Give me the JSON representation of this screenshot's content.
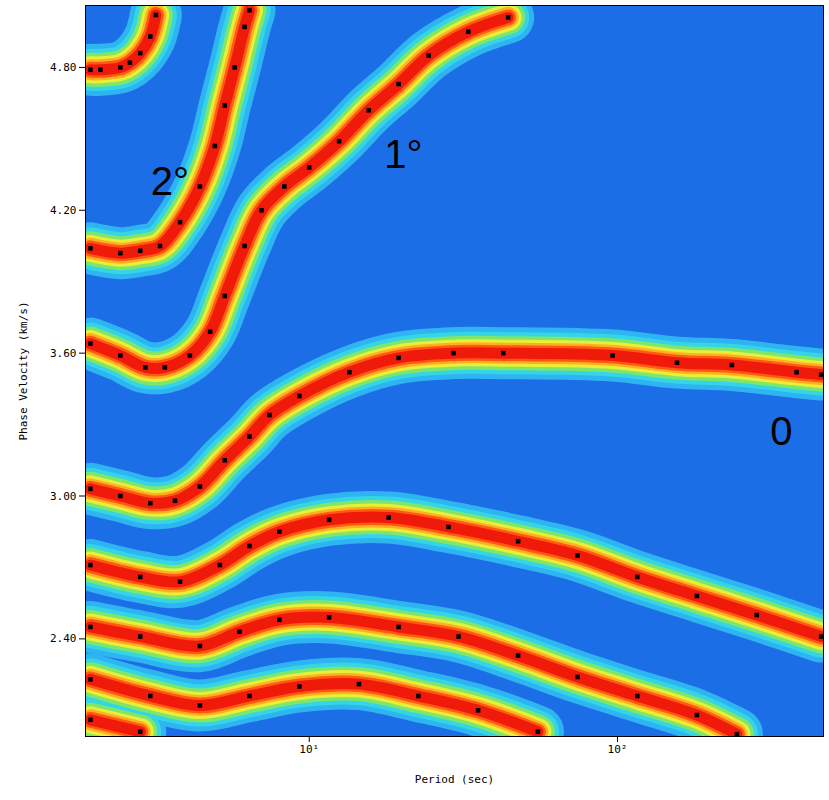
{
  "chart_data": {
    "type": "scatter",
    "x_label": "Period (sec)",
    "y_label": "Phase Velocity (km/s)",
    "log": "x",
    "xlim": [
      1.88,
      466
    ],
    "ylim": [
      1.99,
      5.06
    ],
    "xticks": [
      {
        "value": 10,
        "label": "10¹"
      },
      {
        "value": 100,
        "label": "10²"
      }
    ],
    "yticks": [
      {
        "value": 2.4,
        "label": "2.40"
      },
      {
        "value": 3.0,
        "label": "3.00"
      },
      {
        "value": 3.6,
        "label": "3.60"
      },
      {
        "value": 4.2,
        "label": "4.20"
      },
      {
        "value": 4.8,
        "label": "4.80"
      }
    ],
    "series": [
      {
        "color": "#000000",
        "marker": "square",
        "x": [
          1.95,
          2.1,
          2.44,
          2.62,
          2.83,
          3.05,
          3.18
        ],
        "values": [
          4.79,
          4.79,
          4.8,
          4.82,
          4.86,
          4.93,
          5.02
        ]
      },
      {
        "color": "#000000",
        "marker": "square",
        "x": [
          1.95,
          2.44,
          2.83,
          3.28,
          3.81,
          4.42,
          4.94,
          5.32,
          5.73,
          6.17,
          6.4
        ],
        "values": [
          4.04,
          4.02,
          4.03,
          4.05,
          4.15,
          4.3,
          4.47,
          4.64,
          4.8,
          4.97,
          5.04
        ]
      },
      {
        "color": "#000000",
        "marker": "square",
        "x": [
          1.95,
          2.44,
          2.94,
          3.4,
          4.1,
          4.77,
          5.32,
          6.17,
          7.0,
          8.3,
          10.0,
          12.5,
          15.6,
          19.5,
          24.4,
          32.8,
          44.2
        ],
        "values": [
          3.64,
          3.59,
          3.54,
          3.54,
          3.59,
          3.69,
          3.84,
          4.05,
          4.2,
          4.3,
          4.38,
          4.49,
          4.62,
          4.73,
          4.85,
          4.95,
          5.01
        ]
      },
      {
        "color": "#000000",
        "marker": "square",
        "x": [
          1.95,
          2.44,
          3.05,
          3.67,
          4.42,
          5.32,
          6.4,
          7.43,
          9.29,
          13.5,
          19.5,
          29.4,
          42.6,
          96.4,
          156,
          235,
          381,
          458
        ],
        "values": [
          3.03,
          3.0,
          2.97,
          2.98,
          3.04,
          3.15,
          3.25,
          3.34,
          3.42,
          3.52,
          3.58,
          3.6,
          3.6,
          3.59,
          3.56,
          3.55,
          3.52,
          3.51
        ]
      },
      {
        "color": "#000000",
        "marker": "square",
        "x": [
          1.95,
          2.83,
          3.81,
          5.13,
          6.4,
          8.0,
          11.6,
          18.1,
          28.3,
          47.6,
          74.3,
          116,
          181,
          283,
          458
        ],
        "values": [
          2.71,
          2.66,
          2.64,
          2.71,
          2.79,
          2.85,
          2.9,
          2.91,
          2.87,
          2.81,
          2.75,
          2.66,
          2.58,
          2.5,
          2.41
        ]
      },
      {
        "color": "#000000",
        "marker": "square",
        "x": [
          1.95,
          2.83,
          4.42,
          5.94,
          8.0,
          11.6,
          19.5,
          30.5,
          47.6,
          74.3,
          116,
          181,
          244
        ],
        "values": [
          2.45,
          2.41,
          2.37,
          2.43,
          2.48,
          2.49,
          2.45,
          2.41,
          2.33,
          2.24,
          2.16,
          2.08,
          2.0
        ]
      },
      {
        "color": "#000000",
        "marker": "square",
        "x": [
          1.95,
          3.05,
          4.42,
          6.4,
          9.29,
          14.5,
          22.6,
          35.3,
          55.2
        ],
        "values": [
          2.23,
          2.16,
          2.12,
          2.16,
          2.2,
          2.21,
          2.16,
          2.1,
          2.01
        ]
      },
      {
        "color": "#000000",
        "marker": "square",
        "x": [
          1.95,
          2.83
        ],
        "values": [
          2.06,
          2.01
        ]
      }
    ],
    "annotations": [
      {
        "text": "2°",
        "x": 3.53,
        "y": 4.32
      },
      {
        "text": "1°",
        "x": 20.2,
        "y": 4.43
      },
      {
        "text": "0",
        "x": 340,
        "y": 3.27
      }
    ]
  }
}
